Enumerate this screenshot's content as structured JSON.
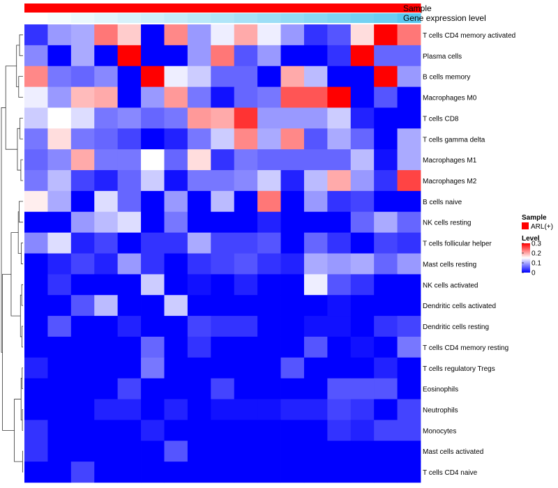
{
  "chart_data": {
    "type": "heatmap",
    "title": "",
    "annotation_tracks": [
      "Sample",
      "Gene expression level"
    ],
    "legend": {
      "sample_title": "Sample",
      "sample_item": "ARL(+)",
      "sample_color": "#ff0000",
      "level_title": "Level",
      "ticks": [
        "0.3",
        "0.2",
        "0.1",
        "0"
      ],
      "tick_values": [
        0.3,
        0.2,
        0.1,
        0.0
      ]
    },
    "color_scale": {
      "low": "#0000ff",
      "mid": "#ffffff",
      "high": "#ff0000",
      "min": 0,
      "mid_value": 0.15,
      "max": 0.3
    },
    "expression_track": {
      "low": "#ffffff",
      "high": "#5ac8f0",
      "values": [
        0.0,
        0.06,
        0.12,
        0.18,
        0.24,
        0.3,
        0.36,
        0.42,
        0.48,
        0.54,
        0.6,
        0.66,
        0.72,
        0.78,
        0.84,
        0.9,
        1.0
      ]
    },
    "row_labels": [
      "T cells CD4 memory activated",
      "Plasma cells",
      "B cells memory",
      "Macrophages M0",
      "T cells CD8",
      "T cells gamma delta",
      "Macrophages M1",
      "Macrophages M2",
      "B cells naive",
      "NK cells resting",
      "T cells follicular helper",
      "Mast cells resting",
      "NK cells activated",
      "Dendritic cells activated",
      "Dendritic cells resting",
      "T cells CD4 memory resting",
      "T cells regulatory  Tregs",
      "Eosinophils",
      "Neutrophils",
      "Monocytes",
      "Mast cells activated",
      "T cells CD4 naive"
    ],
    "values": [
      [
        0.03,
        0.09,
        0.1,
        0.23,
        0.18,
        0.0,
        0.22,
        0.09,
        0.14,
        0.2,
        0.14,
        0.09,
        0.03,
        0.05,
        0.17,
        0.3,
        0.23
      ],
      [
        0.08,
        0.0,
        0.1,
        0.0,
        0.3,
        0.0,
        0.0,
        0.09,
        0.23,
        0.05,
        0.09,
        0.0,
        0.0,
        0.03,
        0.3,
        0.06,
        0.06
      ],
      [
        0.22,
        0.07,
        0.06,
        0.08,
        0.0,
        0.3,
        0.14,
        0.12,
        0.06,
        0.06,
        0.0,
        0.2,
        0.11,
        0.0,
        0.0,
        0.3,
        0.09
      ],
      [
        0.14,
        0.09,
        0.19,
        0.2,
        0.0,
        0.09,
        0.21,
        0.07,
        0.01,
        0.06,
        0.07,
        0.25,
        0.25,
        0.3,
        0.0,
        0.05,
        0.0
      ],
      [
        0.12,
        0.15,
        0.13,
        0.07,
        0.08,
        0.06,
        0.07,
        0.21,
        0.2,
        0.27,
        0.09,
        0.09,
        0.09,
        0.12,
        0.02,
        0.0,
        0.0
      ],
      [
        0.07,
        0.17,
        0.07,
        0.06,
        0.04,
        0.0,
        0.02,
        0.07,
        0.12,
        0.22,
        0.1,
        0.22,
        0.05,
        0.1,
        0.06,
        0.0,
        0.1
      ],
      [
        0.06,
        0.08,
        0.2,
        0.07,
        0.07,
        0.15,
        0.06,
        0.17,
        0.03,
        0.07,
        0.06,
        0.06,
        0.06,
        0.06,
        0.11,
        0.01,
        0.1
      ],
      [
        0.07,
        0.11,
        0.04,
        0.02,
        0.06,
        0.12,
        0.01,
        0.07,
        0.07,
        0.08,
        0.12,
        0.02,
        0.11,
        0.2,
        0.09,
        0.03,
        0.26
      ],
      [
        0.16,
        0.1,
        0.0,
        0.13,
        0.06,
        0.0,
        0.09,
        0.0,
        0.11,
        0.0,
        0.23,
        0.0,
        0.09,
        0.03,
        0.04,
        0.0,
        0.0
      ],
      [
        0.0,
        0.0,
        0.09,
        0.11,
        0.13,
        0.0,
        0.07,
        0.0,
        0.0,
        0.0,
        0.02,
        0.0,
        0.0,
        0.0,
        0.06,
        0.1,
        0.06
      ],
      [
        0.08,
        0.13,
        0.02,
        0.04,
        0.0,
        0.03,
        0.03,
        0.1,
        0.04,
        0.04,
        0.05,
        0.0,
        0.06,
        0.03,
        0.0,
        0.04,
        0.03
      ],
      [
        0.0,
        0.02,
        0.04,
        0.02,
        0.09,
        0.03,
        0.0,
        0.03,
        0.04,
        0.05,
        0.03,
        0.02,
        0.1,
        0.09,
        0.1,
        0.06,
        0.09
      ],
      [
        0.0,
        0.03,
        0.0,
        0.0,
        0.0,
        0.12,
        0.0,
        0.01,
        0.0,
        0.02,
        0.0,
        0.0,
        0.14,
        0.05,
        0.03,
        0.0,
        0.0
      ],
      [
        0.0,
        0.0,
        0.05,
        0.11,
        0.0,
        0.0,
        0.12,
        0.0,
        0.0,
        0.0,
        0.0,
        0.0,
        0.0,
        0.01,
        0.0,
        0.0,
        0.0
      ],
      [
        0.0,
        0.05,
        0.0,
        0.0,
        0.02,
        0.0,
        0.0,
        0.04,
        0.03,
        0.03,
        0.0,
        0.0,
        0.01,
        0.01,
        0.0,
        0.03,
        0.04
      ],
      [
        0.0,
        0.0,
        0.0,
        0.0,
        0.0,
        0.06,
        0.0,
        0.03,
        0.0,
        0.0,
        0.0,
        0.0,
        0.05,
        0.0,
        0.01,
        0.0,
        0.07
      ],
      [
        0.02,
        0.0,
        0.0,
        0.0,
        0.0,
        0.07,
        0.0,
        0.0,
        0.0,
        0.0,
        0.0,
        0.05,
        0.0,
        0.0,
        0.0,
        0.02,
        0.0
      ],
      [
        0.0,
        0.0,
        0.0,
        0.0,
        0.04,
        0.0,
        0.0,
        0.0,
        0.04,
        0.0,
        0.0,
        0.0,
        0.0,
        0.05,
        0.05,
        0.05,
        0.0
      ],
      [
        0.0,
        0.0,
        0.0,
        0.02,
        0.02,
        0.0,
        0.02,
        0.0,
        0.01,
        0.01,
        0.01,
        0.02,
        0.02,
        0.04,
        0.03,
        0.0,
        0.04
      ],
      [
        0.03,
        0.0,
        0.0,
        0.0,
        0.0,
        0.02,
        0.0,
        0.0,
        0.0,
        0.0,
        0.0,
        0.0,
        0.0,
        0.03,
        0.02,
        0.04,
        0.04
      ],
      [
        0.03,
        0.0,
        0.0,
        0.0,
        0.0,
        0.0,
        0.05,
        0.0,
        0.0,
        0.0,
        0.0,
        0.0,
        0.0,
        0.0,
        0.0,
        0.0,
        0.0
      ],
      [
        0.0,
        0.0,
        0.04,
        0.0,
        0.0,
        0.0,
        0.0,
        0.0,
        0.0,
        0.0,
        0.0,
        0.0,
        0.0,
        0.0,
        0.0,
        0.0,
        0.0
      ]
    ]
  }
}
